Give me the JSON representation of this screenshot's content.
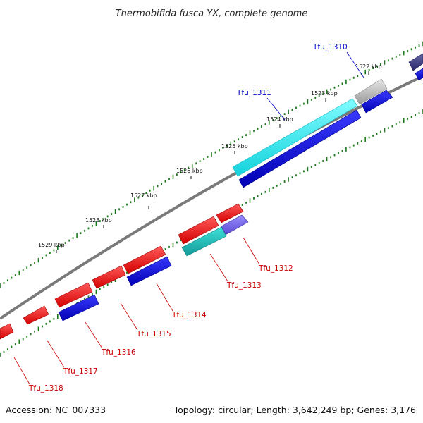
{
  "title": "Thermobifida fusca YX, complete genome",
  "footer": {
    "accession": "Accession: NC_007333",
    "summary": "Topology: circular; Length: 3,642,249 bp; Genes: 3,176"
  },
  "colors": {
    "background": "#ffffff",
    "backbone": "#808080",
    "tick": "#1a7a1a",
    "forward_label": "#0000cc",
    "reverse_label": "#cc0000"
  },
  "scale_labels": [
    "1522 kbp",
    "1523 kbp",
    "1524 kbp",
    "1525 kbp",
    "1526 kbp",
    "1527 kbp",
    "1528 kbp",
    "1529 kbp"
  ],
  "gene_labels": [
    {
      "text": "Tfu_1310",
      "strand": "forward"
    },
    {
      "text": "Tfu_1311",
      "strand": "forward"
    },
    {
      "text": "Tfu_1312",
      "strand": "reverse"
    },
    {
      "text": "Tfu_1313",
      "strand": "reverse"
    },
    {
      "text": "Tfu_1314",
      "strand": "reverse"
    },
    {
      "text": "Tfu_1315",
      "strand": "reverse"
    },
    {
      "text": "Tfu_1316",
      "strand": "reverse"
    },
    {
      "text": "Tfu_1317",
      "strand": "reverse"
    },
    {
      "text": "Tfu_1318",
      "strand": "reverse"
    }
  ]
}
